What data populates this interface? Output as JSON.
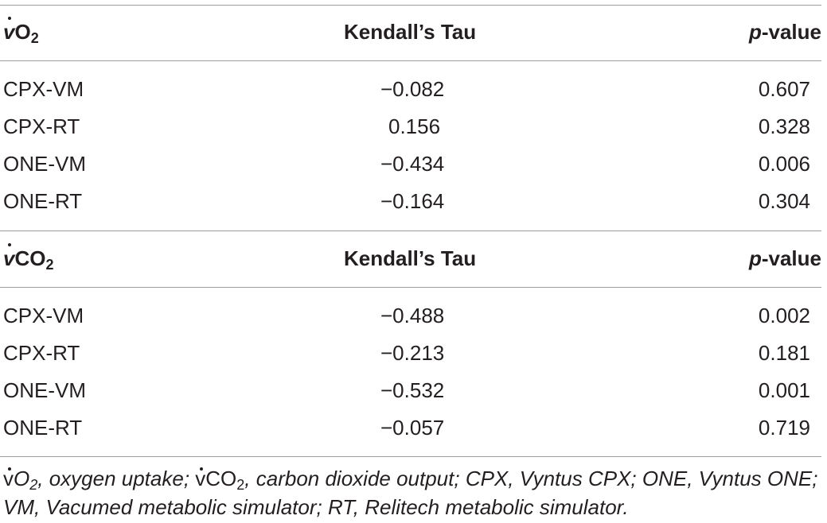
{
  "sections": [
    {
      "header": {
        "variable_prefix": "v",
        "variable_base": "O",
        "variable_sub": "2",
        "tau_label": "Kendall’s Tau",
        "p_italic": "p",
        "p_rest": "-value"
      },
      "rows": [
        {
          "name": "CPX-VM",
          "tau": "−0.082",
          "p": "0.607"
        },
        {
          "name": "CPX-RT",
          "tau": "0.156",
          "p": "0.328"
        },
        {
          "name": "ONE-VM",
          "tau": "−0.434",
          "p": "0.006"
        },
        {
          "name": "ONE-RT",
          "tau": "−0.164",
          "p": "0.304"
        }
      ]
    },
    {
      "header": {
        "variable_prefix": "v",
        "variable_base": "CO",
        "variable_sub": "2",
        "tau_label": "Kendall’s Tau",
        "p_italic": "p",
        "p_rest": "-value"
      },
      "rows": [
        {
          "name": "CPX-VM",
          "tau": "−0.488",
          "p": "0.002"
        },
        {
          "name": "CPX-RT",
          "tau": "−0.213",
          "p": "0.181"
        },
        {
          "name": "ONE-VM",
          "tau": "−0.532",
          "p": "0.001"
        },
        {
          "name": "ONE-RT",
          "tau": "−0.057",
          "p": "0.719"
        }
      ]
    }
  ],
  "footnote": {
    "vo2_prefix": "v",
    "vo2_base": "O",
    "vo2_sub": "2",
    "vo2_desc": ", oxygen uptake; ",
    "vco2_prefix": "v",
    "vco2_base": "CO",
    "vco2_sub": "2",
    "rest": ", carbon dioxide output; CPX, Vyntus CPX; ONE, Vyntus ONE; VM, Vacumed metabolic simulator; RT, Relitech metabolic simulator."
  }
}
